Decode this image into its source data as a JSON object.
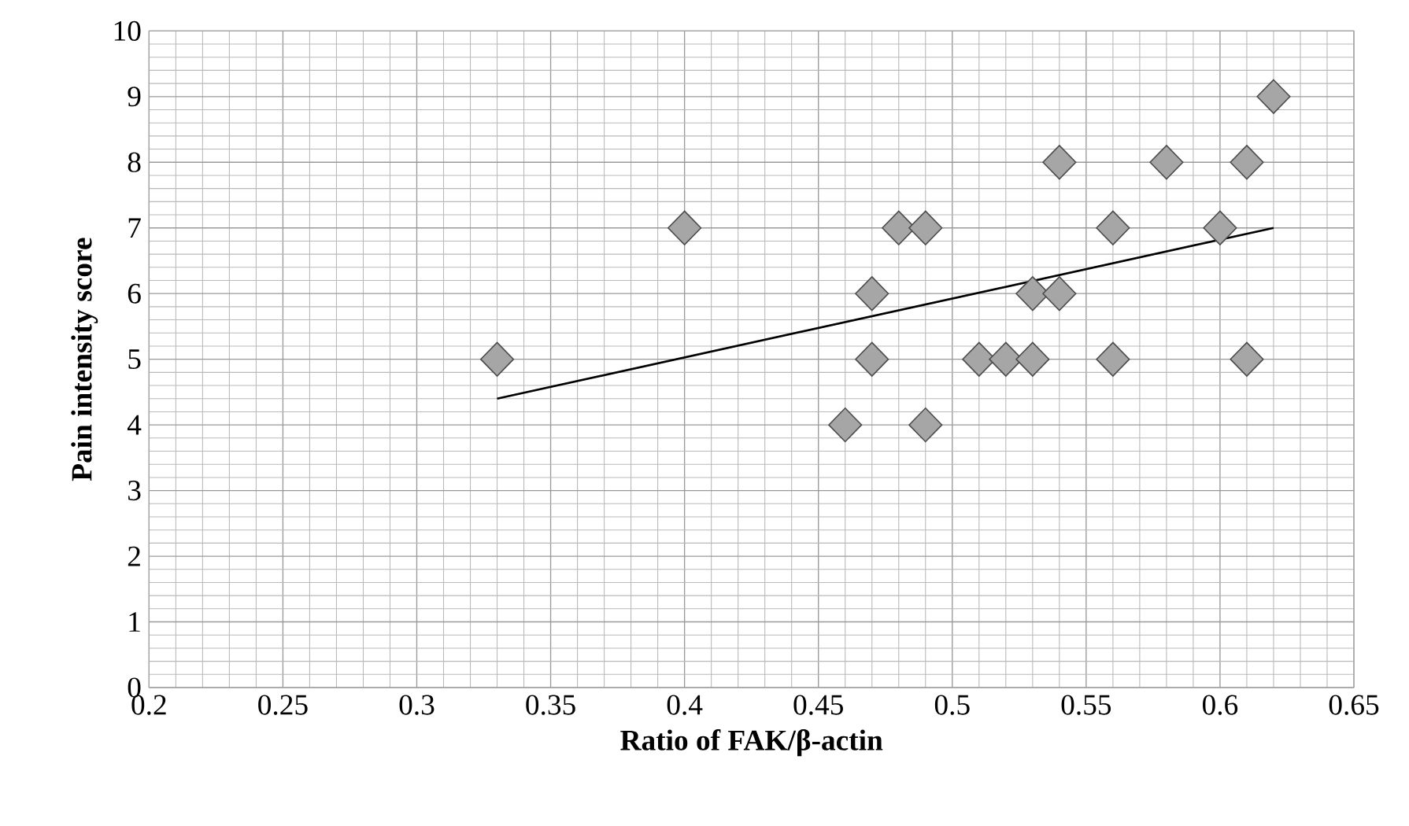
{
  "chart_data": {
    "type": "scatter",
    "xlabel": "Ratio of FAK/β-actin",
    "ylabel": "Pain intensity score",
    "xlim": [
      0.2,
      0.65
    ],
    "ylim": [
      0,
      10
    ],
    "xticks": [
      0.2,
      0.25,
      0.3,
      0.35,
      0.4,
      0.45,
      0.5,
      0.55,
      0.6,
      0.65
    ],
    "yticks": [
      0,
      1,
      2,
      3,
      4,
      5,
      6,
      7,
      8,
      9,
      10
    ],
    "grid": true,
    "series": [
      {
        "type": "scatter",
        "marker": "diamond",
        "color": "#a6a6a6",
        "x": [
          0.33,
          0.4,
          0.46,
          0.47,
          0.47,
          0.48,
          0.49,
          0.49,
          0.51,
          0.52,
          0.53,
          0.53,
          0.54,
          0.54,
          0.56,
          0.56,
          0.58,
          0.6,
          0.61,
          0.61,
          0.62
        ],
        "values": [
          5,
          7,
          4,
          6,
          5,
          7,
          7,
          4,
          5,
          5,
          5,
          6,
          6,
          8,
          7,
          5,
          8,
          7,
          8,
          5,
          9
        ]
      },
      {
        "type": "line",
        "marker": "none",
        "line_style": "solid",
        "color": "#000000",
        "x": [
          0.33,
          0.62
        ],
        "values": [
          4.4,
          7.0
        ]
      }
    ]
  }
}
